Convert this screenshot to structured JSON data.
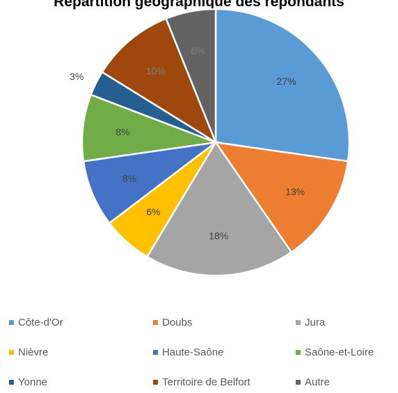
{
  "chart_data": {
    "type": "pie",
    "title": "Répartition géographique des répondants",
    "slices": [
      {
        "label": "Côte-d'Or",
        "value": 27,
        "data_label": "27%",
        "color": "#5B9BD5"
      },
      {
        "label": "Doubs",
        "value": 13,
        "data_label": "13%",
        "color": "#ED7D31"
      },
      {
        "label": "Jura",
        "value": 18,
        "data_label": "18%",
        "color": "#A5A5A5"
      },
      {
        "label": "Nièvre",
        "value": 6,
        "data_label": "6%",
        "color": "#FFC000"
      },
      {
        "label": "Haute-Saône",
        "value": 8,
        "data_label": "8%",
        "color": "#4472C4"
      },
      {
        "label": "Saône-et-Loire",
        "value": 8,
        "data_label": "8%",
        "color": "#70AD47"
      },
      {
        "label": "Yonne",
        "value": 3,
        "data_label": "3%",
        "color": "#255E91"
      },
      {
        "label": "Territoire de Belfort",
        "value": 10,
        "data_label": "10%",
        "color": "#9E480E"
      },
      {
        "label": "Autre",
        "value": 6,
        "data_label": "6%",
        "color": "#636363"
      }
    ],
    "legend_position": "bottom"
  }
}
